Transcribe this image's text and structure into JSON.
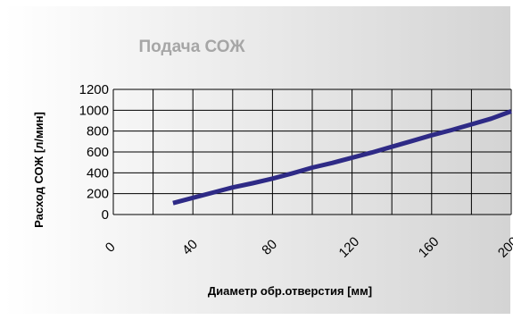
{
  "chart_data": {
    "type": "line",
    "title": "Подача СОЖ",
    "xlabel": "Диаметр обр.отверстия  [мм]",
    "ylabel": "Расход СОЖ    [л/мин]",
    "x_ticks": [
      0,
      40,
      80,
      120,
      160,
      200
    ],
    "y_ticks": [
      0,
      200,
      400,
      600,
      800,
      1000,
      1200
    ],
    "xlim": [
      0,
      200
    ],
    "ylim": [
      0,
      1200
    ],
    "grid": true,
    "series": [
      {
        "x": [
          30,
          40,
          50,
          60,
          70,
          80,
          90,
          100,
          110,
          120,
          130,
          140,
          150,
          160,
          170,
          180,
          190,
          200
        ],
        "y": [
          110,
          160,
          210,
          260,
          300,
          345,
          395,
          450,
          495,
          545,
          595,
          650,
          705,
          760,
          810,
          865,
          920,
          990
        ],
        "color": "#2e2a86"
      }
    ],
    "colors": {
      "line": "#2e2a86",
      "title": "#a6a6a6",
      "grid": "#000000",
      "background_light": "#ffffff",
      "background_dark": "#d4d4d4"
    }
  }
}
